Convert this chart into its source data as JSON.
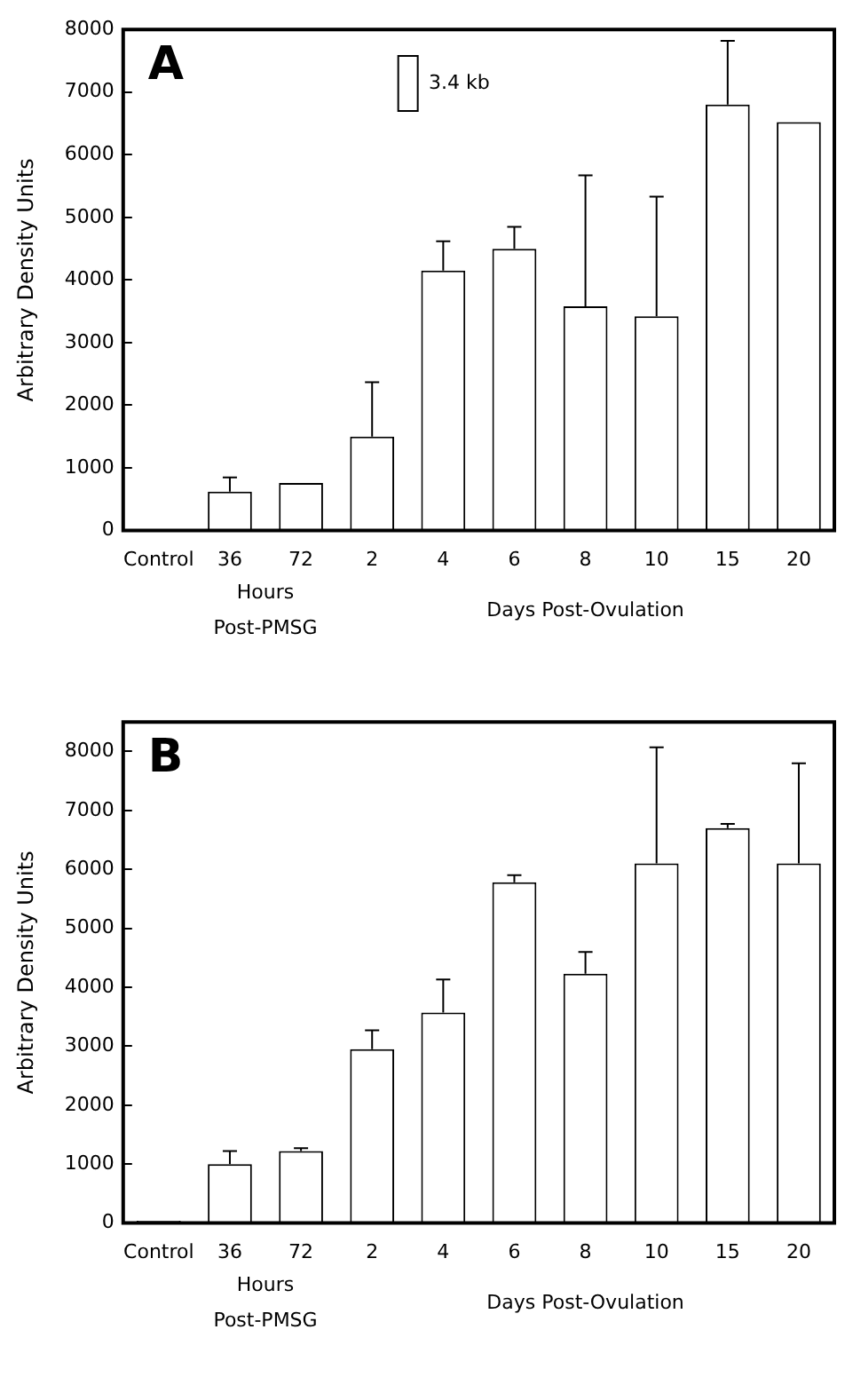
{
  "chart_data": [
    {
      "type": "bar",
      "title": "A",
      "ylabel": "Arbitrary Density Units",
      "categories": [
        "Control",
        "36",
        "72",
        "2",
        "4",
        "6",
        "8",
        "10",
        "15",
        "20"
      ],
      "series": [
        {
          "name": "3.4 kb",
          "color": "#ffffff",
          "values": [
            0,
            620,
            760,
            1500,
            4150,
            4500,
            3580,
            3420,
            6800,
            6520
          ],
          "errors": [
            null,
            [
              620,
              850
            ],
            null,
            [
              1500,
              2370
            ],
            [
              4150,
              4620
            ],
            [
              4500,
              4850
            ],
            [
              3580,
              5670
            ],
            [
              3420,
              5330
            ],
            [
              6800,
              7820
            ],
            null
          ]
        }
      ],
      "ylim": [
        0,
        8000
      ],
      "yticks": [
        0,
        1000,
        2000,
        3000,
        4000,
        5000,
        6000,
        7000,
        8000
      ],
      "grid": false,
      "legend": "top",
      "annotations": [
        "Hours\nPost-PMSG",
        "Days Post-Ovulation"
      ]
    },
    {
      "type": "bar",
      "title": "B",
      "ylabel": "Arbitrary Density Units",
      "categories": [
        "Control",
        "36",
        "72",
        "2",
        "4",
        "6",
        "8",
        "10",
        "15",
        "20"
      ],
      "series": [
        {
          "color": "#ffffff",
          "values": [
            40,
            1000,
            1220,
            2950,
            3570,
            5780,
            4230,
            6100,
            6700,
            6100
          ],
          "errors": [
            null,
            [
              1000,
              1220
            ],
            [
              1220,
              1270
            ],
            [
              2950,
              3270
            ],
            [
              3570,
              4130
            ],
            [
              5780,
              5900
            ],
            [
              4230,
              4600
            ],
            [
              6100,
              8070
            ],
            [
              6700,
              6770
            ],
            [
              6100,
              7800
            ]
          ]
        }
      ],
      "ylim": [
        0,
        8500
      ],
      "yticks": [
        0,
        1000,
        2000,
        3000,
        4000,
        5000,
        6000,
        7000,
        8000
      ],
      "grid": false,
      "legend": false,
      "annotations": [
        "Hours\nPost-PMSG",
        "Days Post-Ovulation"
      ]
    }
  ]
}
